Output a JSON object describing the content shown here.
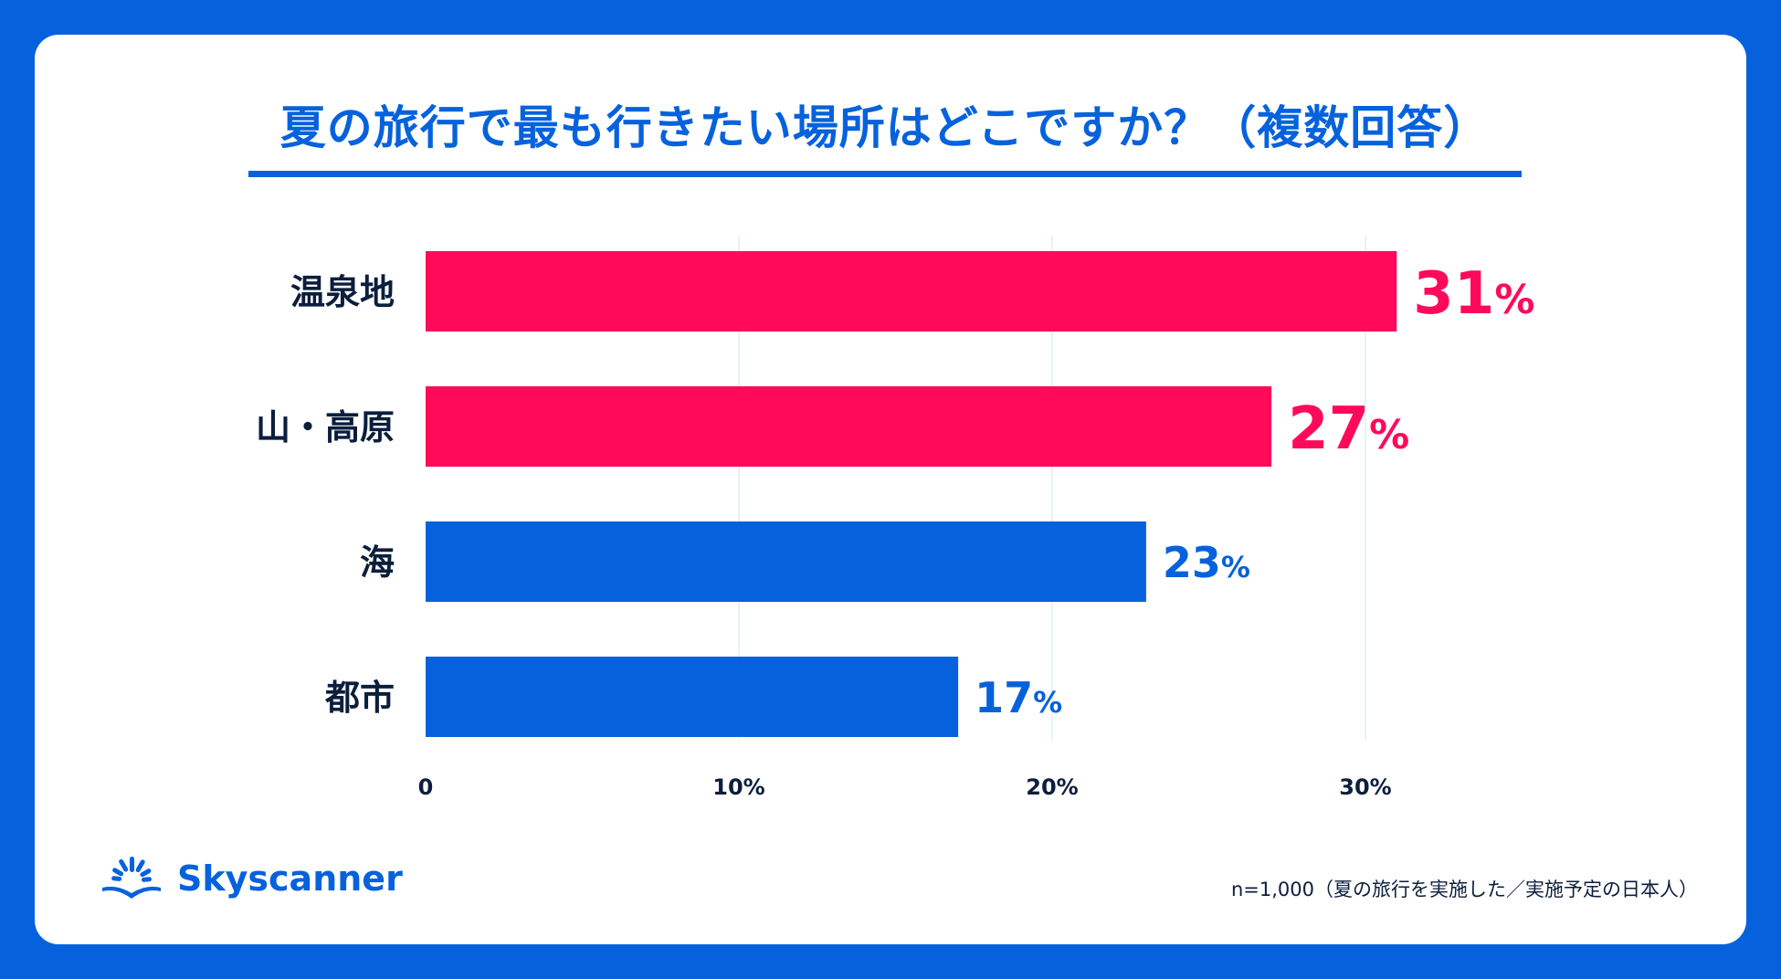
{
  "chart_data": {
    "type": "bar",
    "orientation": "horizontal",
    "title": "夏の旅行で最も行きたい場所はどこですか？（複数回答）",
    "categories": [
      "温泉地",
      "山・高原",
      "海",
      "都市"
    ],
    "values": [
      31,
      27,
      23,
      17
    ],
    "value_labels": [
      "31",
      "27",
      "23",
      "17"
    ],
    "value_unit": "%",
    "xlim": [
      0,
      35
    ],
    "xticks": [
      0,
      10,
      20,
      30
    ],
    "xtick_labels": [
      "0",
      "10%",
      "20%",
      "30%"
    ],
    "grid": true,
    "bar_colors": [
      "#ff0a5a",
      "#ff0a5a",
      "#0662dc",
      "#0662dc"
    ]
  },
  "brand": {
    "name": "Skyscanner",
    "color": "#0662dc",
    "icon": "skyscanner-sunrise-icon"
  },
  "footnote": "n=1,000（夏の旅行を実施した／実施予定の日本人）",
  "colors": {
    "background": "#0662dc",
    "card": "#ffffff",
    "highlight": "#ff0a5a",
    "primary": "#0662dc",
    "text": "#0b1e3c"
  }
}
